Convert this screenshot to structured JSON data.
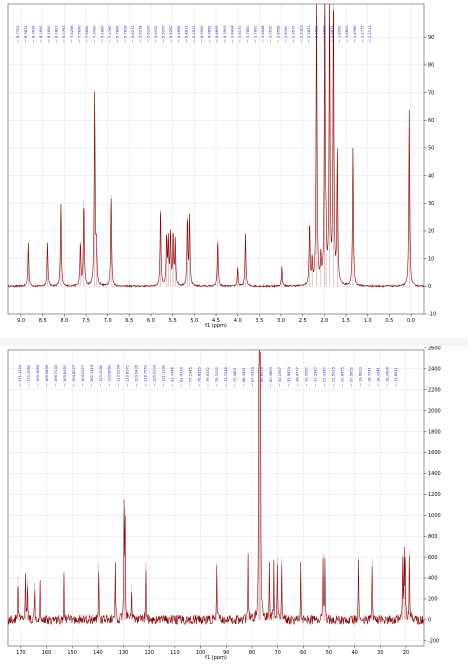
{
  "chart_data": [
    {
      "type": "line",
      "xlabel": "f1 (ppm)",
      "x_reversed": true,
      "xlim": [
        9.3,
        -0.3
      ],
      "ylim": [
        -10,
        102
      ],
      "x_ticks": [
        "9.0",
        "8.5",
        "8.0",
        "7.5",
        "7.0",
        "6.5",
        "6.0",
        "5.5",
        "5.0",
        "4.5",
        "4.0",
        "3.5",
        "3.0",
        "2.5",
        "2.0",
        "1.5",
        "1.0",
        "0.5",
        "0.0"
      ],
      "y_ticks": [
        "90",
        "80",
        "70",
        "60",
        "50",
        "40",
        "30",
        "20",
        "10",
        "0",
        "-10"
      ],
      "peak_labels": [
        "8.7703",
        "8.3871",
        "8.3638",
        "8.1890",
        "8.1850",
        "8.0801",
        "8.0763",
        "7.6256",
        "7.5896",
        "7.5850",
        "7.3090",
        "7.2860",
        "7.2760",
        "5.7849",
        "5.7818",
        "5.6231",
        "5.6174",
        "5.6100",
        "5.6022",
        "5.5370",
        "5.5262",
        "5.4895",
        "5.4611",
        "5.1617",
        "4.9990",
        "4.9852",
        "4.4806",
        "4.3909",
        "3.8494",
        "3.8170",
        "3.7851",
        "3.7600",
        "3.6648",
        "3.0610",
        "2.8558",
        "2.8160",
        "2.3572",
        "2.3303",
        "2.1831",
        "2.0812",
        "1.9900",
        "1.9671",
        "1.8900",
        "1.6800",
        "1.4786",
        "1.2717",
        "1.2111"
      ],
      "peaks": [
        {
          "x": 8.83,
          "h": 16
        },
        {
          "x": 8.39,
          "h": 16
        },
        {
          "x": 8.08,
          "h": 30
        },
        {
          "x": 7.63,
          "h": 16
        },
        {
          "x": 7.55,
          "h": 31
        },
        {
          "x": 7.3,
          "h": 70
        },
        {
          "x": 7.26,
          "h": 14
        },
        {
          "x": 6.92,
          "h": 33
        },
        {
          "x": 5.78,
          "h": 28
        },
        {
          "x": 5.64,
          "h": 18
        },
        {
          "x": 5.6,
          "h": 16
        },
        {
          "x": 5.55,
          "h": 19
        },
        {
          "x": 5.49,
          "h": 19
        },
        {
          "x": 5.44,
          "h": 17
        },
        {
          "x": 5.16,
          "h": 25
        },
        {
          "x": 5.11,
          "h": 25
        },
        {
          "x": 4.46,
          "h": 17
        },
        {
          "x": 4.0,
          "h": 7
        },
        {
          "x": 3.82,
          "h": 19
        },
        {
          "x": 2.98,
          "h": 7
        },
        {
          "x": 2.34,
          "h": 23
        },
        {
          "x": 2.28,
          "h": 9
        },
        {
          "x": 2.18,
          "h": 108
        },
        {
          "x": 2.08,
          "h": 10
        },
        {
          "x": 1.99,
          "h": 108
        },
        {
          "x": 1.96,
          "h": 12
        },
        {
          "x": 1.88,
          "h": 108
        },
        {
          "x": 1.79,
          "h": 108
        },
        {
          "x": 1.7,
          "h": 48
        },
        {
          "x": 1.34,
          "h": 50
        },
        {
          "x": 0.04,
          "h": 64
        }
      ]
    },
    {
      "type": "line",
      "xlabel": "f1 (ppm)",
      "x_reversed": true,
      "xlim": [
        175,
        13
      ],
      "ylim": [
        -250,
        2580
      ],
      "x_ticks": [
        "170",
        "160",
        "150",
        "140",
        "130",
        "120",
        "110",
        "100",
        "90",
        "80",
        "70",
        "60",
        "50",
        "40",
        "30",
        "20"
      ],
      "y_ticks": [
        "2600",
        "2400",
        "2200",
        "2000",
        "1800",
        "1600",
        "1400",
        "1200",
        "1000",
        "800",
        "600",
        "400",
        "200",
        "0",
        "-200"
      ],
      "peak_labels": [
        "171.1200",
        "170.2990",
        "169.3856",
        "169.9839",
        "166.7143",
        "165.8951",
        "164.8027",
        "164.0977",
        "162.1416",
        "153.2040",
        "139.6660",
        "133.2294",
        "129.8571",
        "129.6435",
        "128.7553",
        "126.9333",
        "121.3192",
        "93.7348",
        "81.4733",
        "77.2345",
        "76.8155",
        "76.6332",
        "75.1230",
        "73.7248",
        "72.4421",
        "68.3851",
        "67.7519",
        "60.8279",
        "60.3893",
        "52.1997",
        "51.5874",
        "38.4777",
        "33.0957",
        "33.2940",
        "21.3247",
        "21.5025",
        "20.8975",
        "20.5652",
        "19.6023",
        "18.7241",
        "18.7241",
        "18.7496",
        "17.8911"
      ],
      "peaks": [
        {
          "x": 171.1,
          "h": 420
        },
        {
          "x": 168.2,
          "h": 440
        },
        {
          "x": 167.4,
          "h": 390
        },
        {
          "x": 164.6,
          "h": 360
        },
        {
          "x": 162.5,
          "h": 370
        },
        {
          "x": 153.2,
          "h": 420
        },
        {
          "x": 139.7,
          "h": 540
        },
        {
          "x": 133.2,
          "h": 540
        },
        {
          "x": 129.8,
          "h": 1040
        },
        {
          "x": 129.4,
          "h": 1070
        },
        {
          "x": 126.9,
          "h": 330
        },
        {
          "x": 121.3,
          "h": 550
        },
        {
          "x": 93.7,
          "h": 540
        },
        {
          "x": 81.5,
          "h": 640
        },
        {
          "x": 77.3,
          "h": 2550
        },
        {
          "x": 77.0,
          "h": 2550
        },
        {
          "x": 76.7,
          "h": 2550
        },
        {
          "x": 73.2,
          "h": 560
        },
        {
          "x": 71.5,
          "h": 580
        },
        {
          "x": 70.1,
          "h": 590
        },
        {
          "x": 68.4,
          "h": 580
        },
        {
          "x": 61.0,
          "h": 540
        },
        {
          "x": 52.3,
          "h": 640
        },
        {
          "x": 51.6,
          "h": 620
        },
        {
          "x": 38.5,
          "h": 600
        },
        {
          "x": 33.2,
          "h": 580
        },
        {
          "x": 21.3,
          "h": 620
        },
        {
          "x": 20.7,
          "h": 640
        },
        {
          "x": 20.3,
          "h": 600
        },
        {
          "x": 18.7,
          "h": 660
        }
      ]
    }
  ]
}
